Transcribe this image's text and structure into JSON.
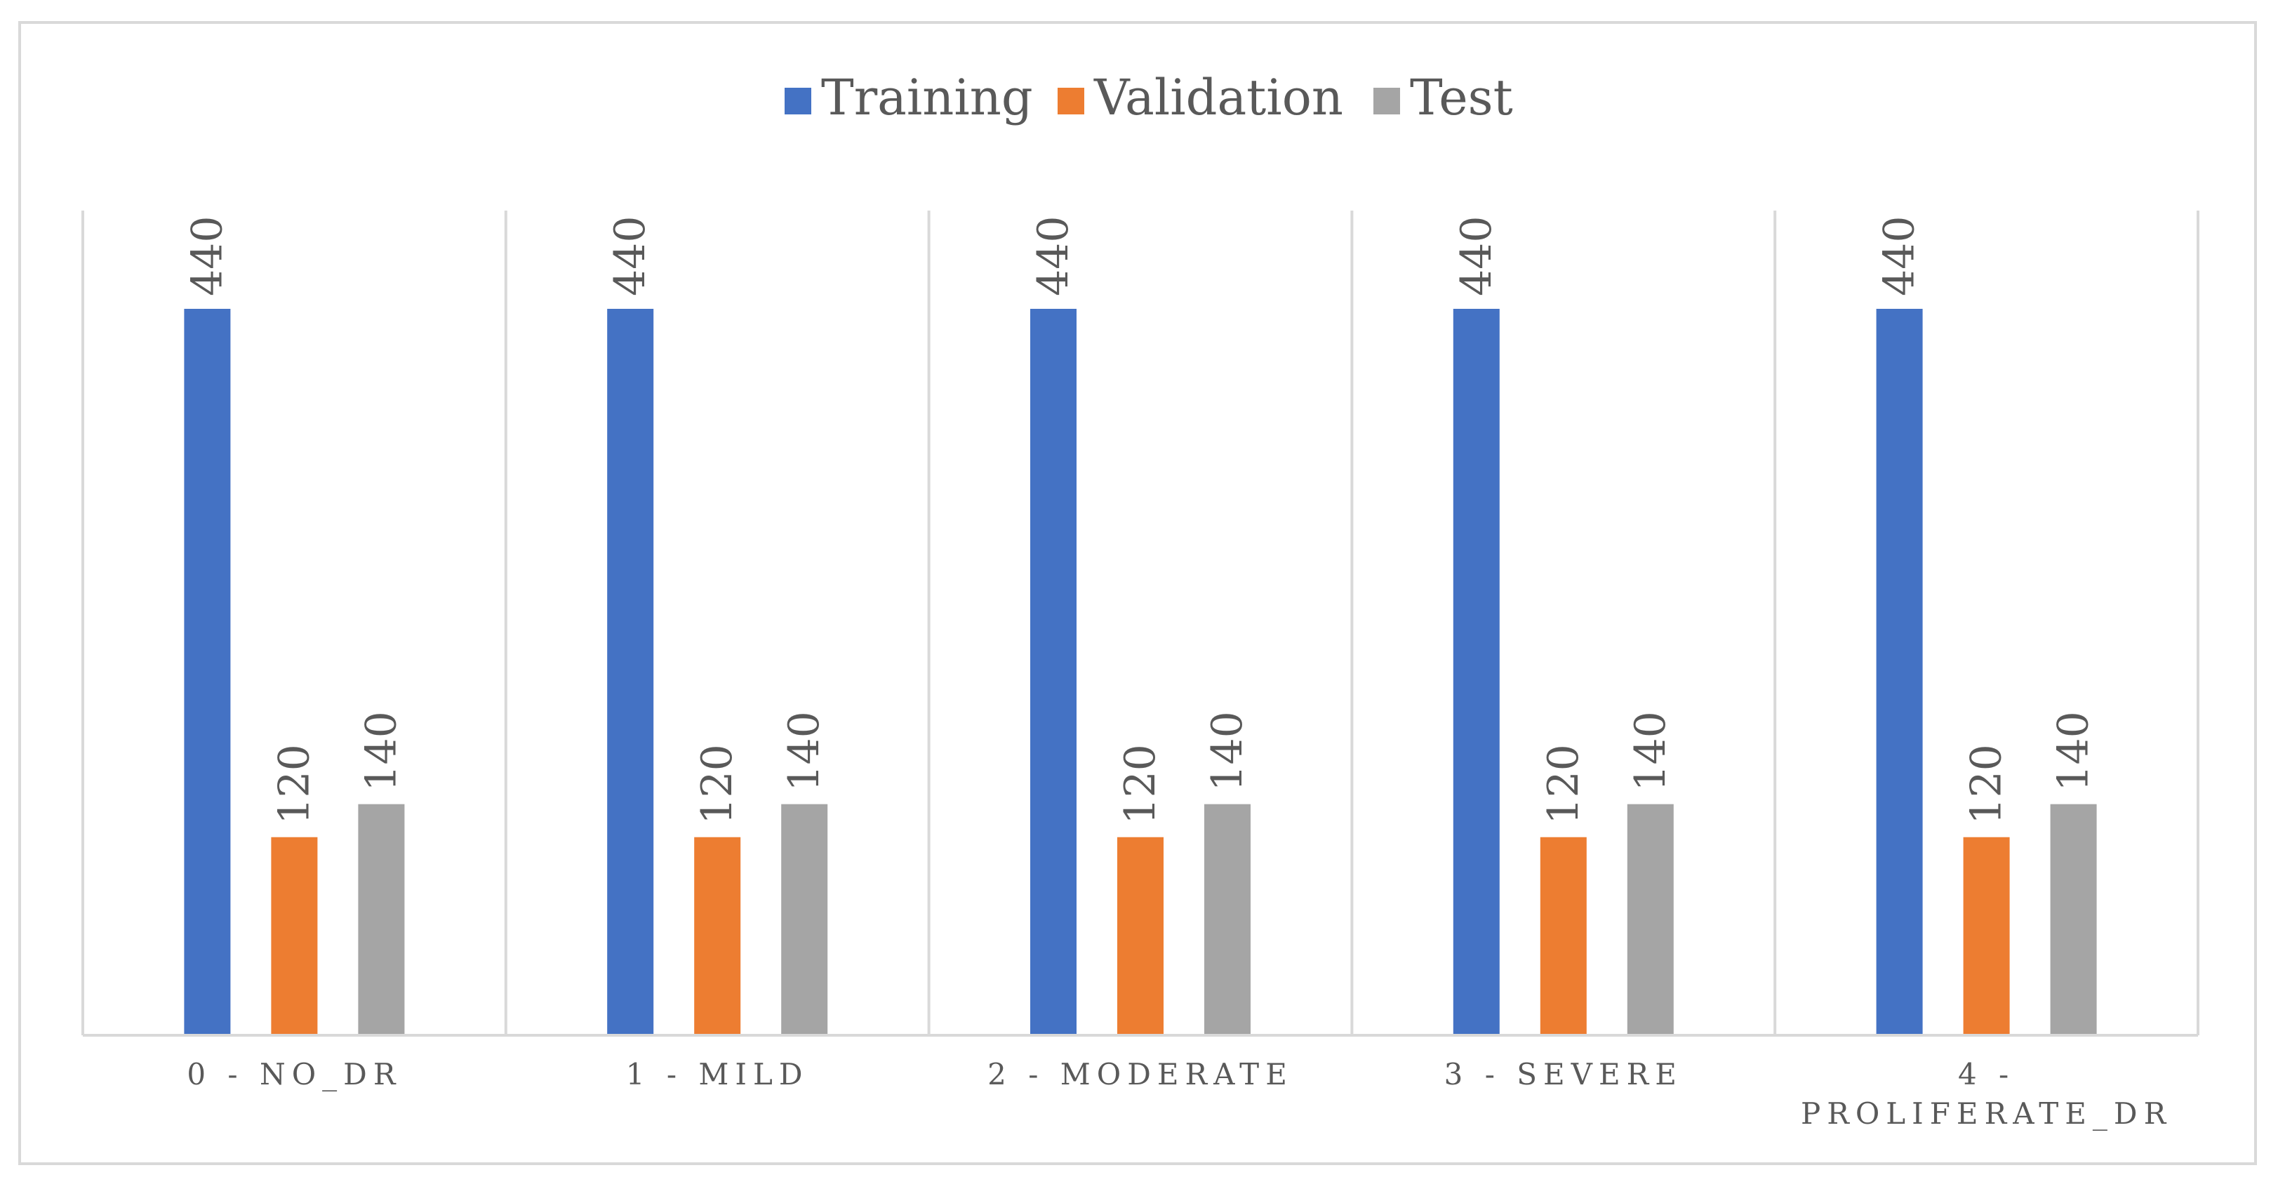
{
  "chart_data": {
    "type": "bar",
    "title": "",
    "xlabel": "",
    "ylabel": "",
    "ylim": [
      0,
      500
    ],
    "grid": false,
    "legend_position": "top",
    "categories": [
      [
        "0 - NO_DR"
      ],
      [
        "1 - MILD"
      ],
      [
        "2 - MODERATE"
      ],
      [
        "3 - SEVERE"
      ],
      [
        "4 -",
        "PROLIFERATE_DR"
      ]
    ],
    "series": [
      {
        "name": "Training",
        "color": "#4472c4",
        "values": [
          440,
          440,
          440,
          440,
          440
        ]
      },
      {
        "name": "Validation",
        "color": "#ed7d31",
        "values": [
          120,
          120,
          120,
          120,
          120
        ]
      },
      {
        "name": "Test",
        "color": "#a5a5a5",
        "values": [
          140,
          140,
          140,
          140,
          140
        ]
      }
    ],
    "data_labels": true
  }
}
